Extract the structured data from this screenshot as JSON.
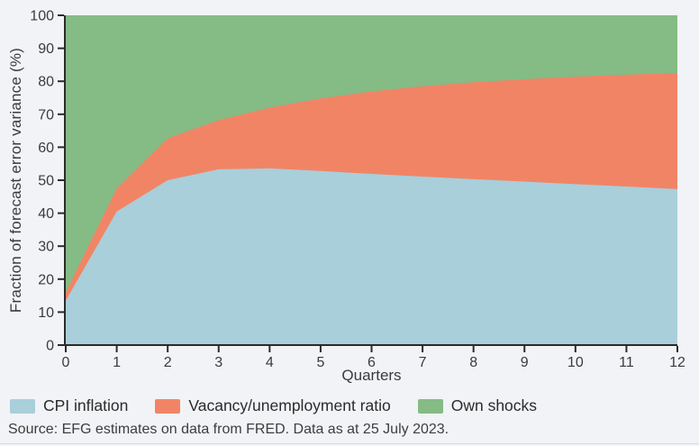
{
  "figure": {
    "background": "#f1f3f6",
    "axis_color": "#2b2b2b",
    "tick_text_color": "#3b3b3b"
  },
  "chart_data": {
    "type": "area",
    "stacked": true,
    "title": "",
    "xlabel": "Quarters",
    "ylabel": "Fraction of forecast error variance (%)",
    "xlim": [
      0,
      12
    ],
    "ylim": [
      0,
      100
    ],
    "x_ticks": [
      0,
      1,
      2,
      3,
      4,
      5,
      6,
      7,
      8,
      9,
      10,
      11,
      12
    ],
    "y_ticks": [
      0,
      10,
      20,
      30,
      40,
      50,
      60,
      70,
      80,
      90,
      100
    ],
    "grid": false,
    "legend_position": "bottom",
    "x": [
      0,
      1,
      2,
      3,
      4,
      5,
      6,
      7,
      8,
      9,
      10,
      11,
      12
    ],
    "series": [
      {
        "name": "CPI inflation",
        "color": "#a8cfda",
        "values": [
          13.5,
          40.5,
          50.0,
          53.3,
          53.6,
          52.8,
          51.9,
          51.1,
          50.3,
          49.6,
          48.8,
          48.1,
          47.3
        ]
      },
      {
        "name": "Vacancy/unemployment ratio",
        "color": "#f28466",
        "values": [
          2.5,
          7.0,
          12.7,
          14.9,
          18.4,
          22.0,
          25.0,
          27.4,
          29.4,
          31.0,
          32.6,
          33.9,
          35.2
        ]
      },
      {
        "name": "Own shocks",
        "color": "#85bb84",
        "values": [
          84.0,
          52.5,
          37.3,
          31.8,
          28.0,
          25.2,
          23.1,
          21.5,
          20.3,
          19.4,
          18.6,
          18.0,
          17.5
        ]
      }
    ]
  },
  "source": {
    "text": "Source: EFG estimates on data from FRED. Data as at 25 July 2023."
  }
}
